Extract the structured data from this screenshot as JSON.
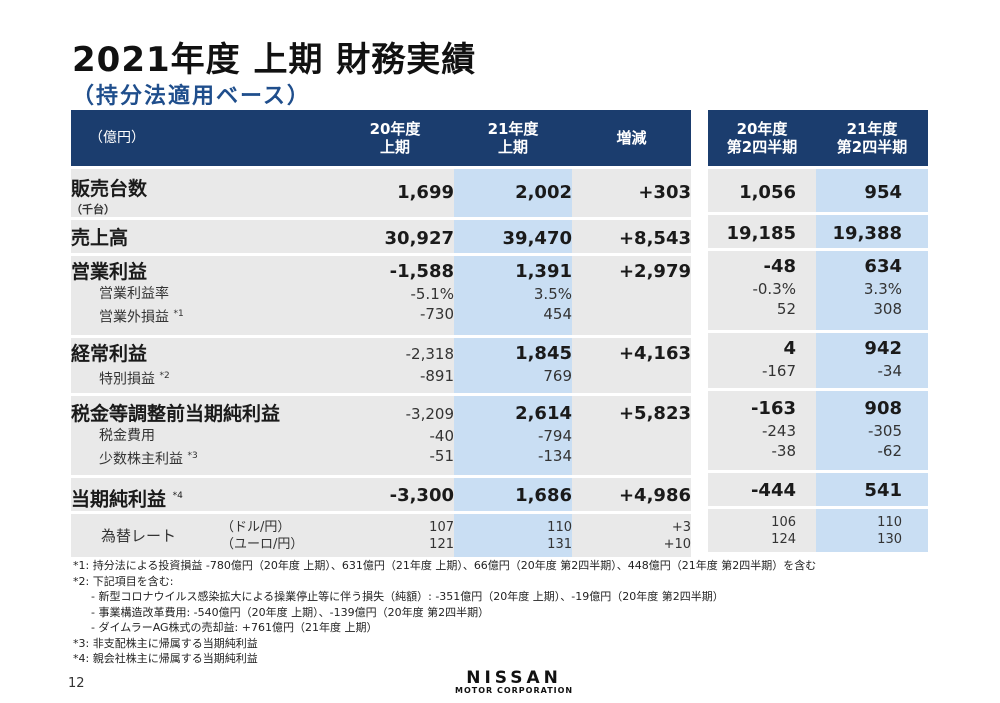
{
  "title": "2021年度 上期 財務実績",
  "subtitle": "（持分法適用ベース）",
  "header": {
    "unit": "（億円）",
    "col1": [
      "20年度",
      "上期"
    ],
    "col2": [
      "21年度",
      "上期"
    ],
    "col3": "増減",
    "col4": [
      "20年度",
      "第2四半期"
    ],
    "col5": [
      "21年度",
      "第2四半期"
    ]
  },
  "rows": {
    "units": {
      "label": "販売台数",
      "sublabel": "（千台）",
      "v": [
        "1,699",
        "2,002",
        "+303",
        "1,056",
        "954"
      ]
    },
    "sales": {
      "label": "売上高",
      "v": [
        "30,927",
        "39,470",
        "+8,543",
        "19,185",
        "19,388"
      ]
    },
    "op": {
      "label": "営業利益",
      "v": [
        "-1,588",
        "1,391",
        "+2,979",
        "-48",
        "634"
      ]
    },
    "op_margin": {
      "label": "営業利益率",
      "v": [
        "-5.1%",
        "3.5%",
        "",
        "-0.3%",
        "3.3%"
      ]
    },
    "nonop": {
      "label": "営業外損益",
      "note": "*1",
      "v": [
        "-730",
        "454",
        "",
        "52",
        "308"
      ]
    },
    "ordinary": {
      "label": "経常利益",
      "v": [
        "-2,318",
        "1,845",
        "+4,163",
        "4",
        "942"
      ]
    },
    "special": {
      "label": "特別損益",
      "note": "*2",
      "v": [
        "-891",
        "769",
        "",
        "-167",
        "-34"
      ]
    },
    "pretax": {
      "label": "税金等調整前当期純利益",
      "v": [
        "-3,209",
        "2,614",
        "+5,823",
        "-163",
        "908"
      ]
    },
    "tax": {
      "label": "税金費用",
      "v": [
        "-40",
        "-794",
        "",
        "-243",
        "-305"
      ]
    },
    "minority": {
      "label": "少数株主利益",
      "note": "*3",
      "v": [
        "-51",
        "-134",
        "",
        "-38",
        "-62"
      ]
    },
    "net": {
      "label": "当期純利益",
      "note": "*4",
      "v": [
        "-3,300",
        "1,686",
        "+4,986",
        "-444",
        "541"
      ]
    },
    "fx": {
      "label": "為替レート",
      "usd_label": "（ドル/円）",
      "eur_label": "（ユーロ/円）",
      "usd": [
        "107",
        "110",
        "+3",
        "106",
        "110"
      ],
      "eur": [
        "121",
        "131",
        "+10",
        "124",
        "130"
      ]
    }
  },
  "footnotes": [
    "*1: 持分法による投資損益 -780億円（20年度 上期）、631億円（21年度 上期）、66億円（20年度 第2四半期）、448億円（21年度 第2四半期）を含む",
    "*2: 下記項目を含む:",
    "- 新型コロナウイルス感染拡大による操業停止等に伴う損失（純額）: -351億円（20年度 上期）、-19億円（20年度 第2四半期）",
    "- 事業構造改革費用: -540億円（20年度 上期）、-139億円（20年度 第2四半期）",
    "- ダイムラーAG株式の売却益: +761億円（21年度 上期）",
    "*3: 非支配株主に帰属する当期純利益",
    "*4: 親会社株主に帰属する当期純利益"
  ],
  "page_number": "12",
  "logo": {
    "name": "NISSAN",
    "tagline": "MOTOR CORPORATION"
  }
}
